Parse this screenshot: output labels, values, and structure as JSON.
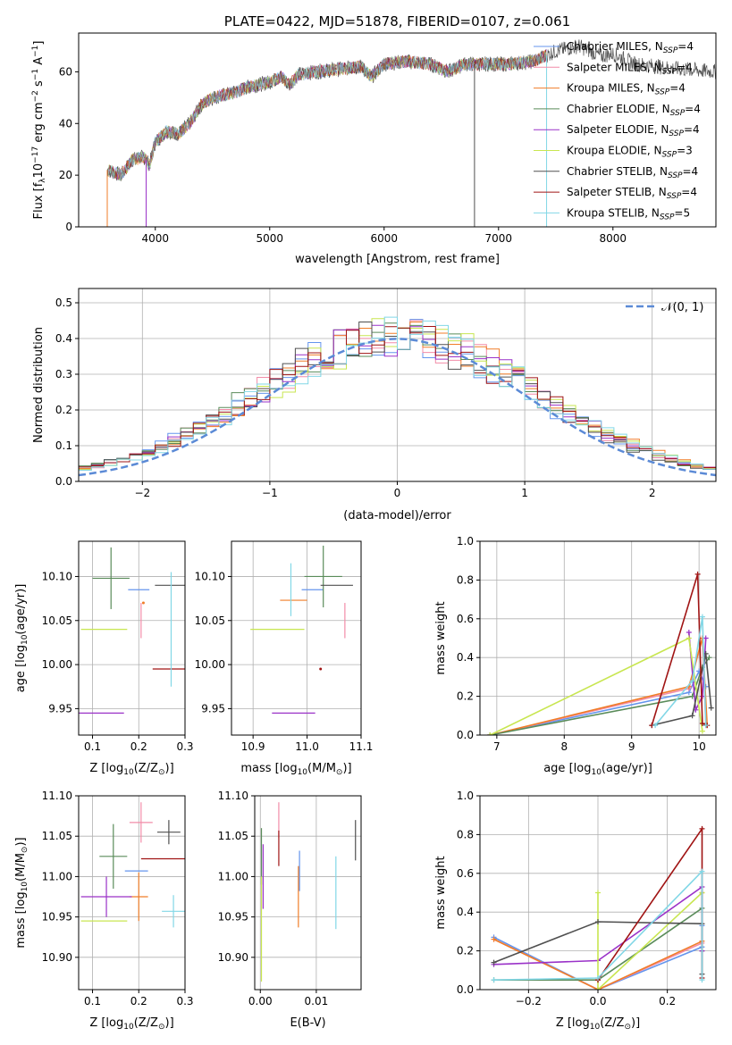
{
  "figure": {
    "title": "PLATE=0422, MJD=51878, FIBERID=0107, z=0.061"
  },
  "palette": [
    "#6495ed",
    "#f28ca8",
    "#f07d28",
    "#5a8c5a",
    "#9a32c8",
    "#c8e650",
    "#505050",
    "#a01414",
    "#82d7e6"
  ],
  "legend_entries": [
    {
      "name": "Chabrier MILES, N",
      "sub": "SSP",
      "suffix": "=4"
    },
    {
      "name": "Salpeter MILES, N",
      "sub": "SSP",
      "suffix": "=4"
    },
    {
      "name": "Kroupa MILES, N",
      "sub": "SSP",
      "suffix": "=4"
    },
    {
      "name": "Chabrier ELODIE, N",
      "sub": "SSP",
      "suffix": "=4"
    },
    {
      "name": "Salpeter ELODIE, N",
      "sub": "SSP",
      "suffix": "=4"
    },
    {
      "name": "Kroupa ELODIE, N",
      "sub": "SSP",
      "suffix": "=3"
    },
    {
      "name": "Chabrier STELIB, N",
      "sub": "SSP",
      "suffix": "=4"
    },
    {
      "name": "Salpeter STELIB, N",
      "sub": "SSP",
      "suffix": "=4"
    },
    {
      "name": "Kroupa STELIB, N",
      "sub": "SSP",
      "suffix": "=5"
    }
  ],
  "chart_data": [
    {
      "id": "spectrum",
      "type": "line",
      "xlabel": "wavelength [Angstrom, rest frame]",
      "ylabel": {
        "pre": "Flux [f",
        "sub": "λ",
        "mid": "10",
        "sup1": "−17",
        "post": " erg cm",
        "sup2": "−2",
        "post2": " s",
        "sup3": "−1",
        "post3": " A",
        "sup4": "−1",
        "end": "]"
      },
      "xlim": [
        3330,
        8900
      ],
      "ylim": [
        0,
        75
      ],
      "xticks": [
        4000,
        5000,
        6000,
        7000,
        8000
      ],
      "yticks": [
        0,
        20,
        40,
        60
      ],
      "data_x": [
        3580,
        3700,
        3800,
        3900,
        3950,
        4000,
        4100,
        4200,
        4300,
        4400,
        4500,
        4600,
        4700,
        4800,
        4900,
        5000,
        5100,
        5170,
        5250,
        5400,
        5600,
        5800,
        5890,
        6000,
        6200,
        6400,
        6563,
        6700,
        6900,
        7100,
        7300,
        7500,
        7600,
        7700,
        7800,
        7900,
        8000,
        8100,
        8200,
        8400,
        8600,
        8900
      ],
      "data_y": [
        22,
        20,
        26,
        27,
        24,
        33,
        37,
        36,
        40,
        47,
        50,
        51,
        52,
        54,
        55,
        56,
        58,
        55,
        59,
        60,
        61,
        62,
        58,
        63,
        64,
        63,
        60,
        63,
        63,
        63,
        64,
        68,
        69,
        70,
        68,
        66,
        67,
        65,
        63,
        62,
        61,
        60
      ],
      "model_cut_x": [
        3580,
        3920,
        6790,
        7420
      ]
    },
    {
      "id": "residuals",
      "type": "histogram",
      "xlabel": "(data-model)/error",
      "ylabel": "Normed distribution",
      "xlim": [
        -2.5,
        2.5
      ],
      "ylim": [
        0,
        0.54
      ],
      "xticks": [
        -2,
        -1,
        0,
        1,
        2
      ],
      "yticks": [
        0.0,
        0.1,
        0.2,
        0.3,
        0.4,
        0.5
      ],
      "bin_width": 0.1,
      "reference_legend": "(0, 1)",
      "reference_symbol": "𝒩",
      "reference": {
        "name": "normal",
        "mean": 0,
        "sigma": 1
      }
    },
    {
      "id": "age_vs_z",
      "type": "errorbar",
      "xlabel": {
        "pre": "Z [log",
        "sub": "10",
        "post": "(Z/Z",
        "sub2": "⊙",
        "end": ")]"
      },
      "ylabel": {
        "pre": "age  [log",
        "sub": "10",
        "post": "(age/yr)]"
      },
      "xlim": [
        0.07,
        0.3
      ],
      "ylim": [
        9.92,
        10.14
      ],
      "xticks": [
        0.1,
        0.2,
        0.3
      ],
      "yticks": [
        9.95,
        10.0,
        10.05,
        10.1
      ],
      "points": [
        {
          "x": 0.2,
          "xerr": 0.023,
          "y": 10.085,
          "yerr": 0.0
        },
        {
          "x": 0.205,
          "xerr": 0.0,
          "y": 10.05,
          "yerr": 0.02
        },
        {
          "x": 0.21,
          "xerr": 0.0,
          "y": 10.07,
          "yerr": 0.0
        },
        {
          "x": 0.14,
          "xerr": 0.04,
          "y": 10.098,
          "yerr": 0.035
        },
        {
          "x": 0.115,
          "xerr": 0.053,
          "y": 9.945,
          "yerr": 0.0
        },
        {
          "x": 0.125,
          "xerr": 0.05,
          "y": 10.04,
          "yerr": 0.0
        },
        {
          "x": 0.27,
          "xerr": 0.035,
          "y": 10.09,
          "yerr": 0.0
        },
        {
          "x": 0.27,
          "xerr": 0.04,
          "y": 9.995,
          "yerr": 0.0
        },
        {
          "x": 0.27,
          "xerr": 0.0,
          "y": 10.04,
          "yerr": 0.065
        }
      ]
    },
    {
      "id": "age_vs_mass",
      "type": "errorbar",
      "xlabel": {
        "pre": "mass [log",
        "sub": "10",
        "post": "(M/M",
        "sub2": "⊙",
        "end": ")]"
      },
      "xlim": [
        10.86,
        11.1
      ],
      "ylim": [
        9.92,
        10.14
      ],
      "xticks": [
        10.9,
        11.0,
        11.1
      ],
      "yticks": [
        9.95,
        10.0,
        10.05,
        10.1
      ],
      "points": [
        {
          "x": 11.01,
          "xerr": 0.02,
          "y": 10.085,
          "yerr": 0.0
        },
        {
          "x": 11.07,
          "xerr": 0.0,
          "y": 10.05,
          "yerr": 0.02
        },
        {
          "x": 10.975,
          "xerr": 0.025,
          "y": 10.073,
          "yerr": 0.0
        },
        {
          "x": 11.03,
          "xerr": 0.035,
          "y": 10.1,
          "yerr": 0.035
        },
        {
          "x": 10.975,
          "xerr": 0.04,
          "y": 9.945,
          "yerr": 0.0
        },
        {
          "x": 10.945,
          "xerr": 0.05,
          "y": 10.04,
          "yerr": 0.0
        },
        {
          "x": 11.055,
          "xerr": 0.03,
          "y": 10.09,
          "yerr": 0.0
        },
        {
          "x": 11.025,
          "xerr": 0.0,
          "y": 9.995,
          "yerr": 0.0
        },
        {
          "x": 10.97,
          "xerr": 0.0,
          "y": 10.085,
          "yerr": 0.03
        }
      ]
    },
    {
      "id": "massweight_vs_age",
      "type": "line",
      "xlabel": {
        "pre": "age  [log",
        "sub": "10",
        "post": "(age/yr)]"
      },
      "ylabel": "mass weight",
      "xlim": [
        6.75,
        10.25
      ],
      "ylim": [
        0,
        1.0
      ],
      "xticks": [
        7,
        8,
        9,
        10
      ],
      "yticks": [
        0.0,
        0.2,
        0.4,
        0.6,
        0.8,
        1.0
      ],
      "series": [
        {
          "x": [
            6.9,
            9.85,
            10.0,
            10.1
          ],
          "y": [
            0.0,
            0.22,
            0.33,
            0.25
          ]
        },
        {
          "x": [
            6.9,
            9.85,
            10.05,
            10.1
          ],
          "y": [
            0.0,
            0.24,
            0.5,
            0.05
          ]
        },
        {
          "x": [
            6.9,
            9.85,
            10.05,
            10.12
          ],
          "y": [
            0.0,
            0.25,
            0.5,
            0.05
          ]
        },
        {
          "x": [
            6.9,
            9.9,
            10.05,
            10.15
          ],
          "y": [
            0.0,
            0.2,
            0.35,
            0.4
          ]
        },
        {
          "x": [
            9.85,
            9.95,
            10.05,
            10.1
          ],
          "y": [
            0.53,
            0.13,
            0.2,
            0.5
          ]
        },
        {
          "x": [
            6.9,
            9.85,
            10.05
          ],
          "y": [
            0.0,
            0.5,
            0.02
          ]
        },
        {
          "x": [
            9.3,
            9.9,
            10.1,
            10.18
          ],
          "y": [
            0.05,
            0.1,
            0.42,
            0.14
          ]
        },
        {
          "x": [
            9.3,
            9.98,
            10.05,
            10.12
          ],
          "y": [
            0.05,
            0.83,
            0.06,
            0.05
          ]
        },
        {
          "x": [
            9.35,
            9.9,
            10.05,
            10.1
          ],
          "y": [
            0.05,
            0.28,
            0.61,
            0.05
          ]
        }
      ]
    },
    {
      "id": "mass_vs_z",
      "type": "errorbar",
      "xlabel": {
        "pre": "Z [log",
        "sub": "10",
        "post": "(Z/Z",
        "sub2": "⊙",
        "end": ")]"
      },
      "ylabel": {
        "pre": "mass [log",
        "sub": "10",
        "post": "(M/M",
        "sub2": "⊙",
        "end": ")]"
      },
      "xlim": [
        0.07,
        0.3
      ],
      "ylim": [
        10.86,
        11.1
      ],
      "xticks": [
        0.1,
        0.2,
        0.3
      ],
      "yticks": [
        10.9,
        10.95,
        11.0,
        11.05,
        11.1
      ],
      "points": [
        {
          "x": 0.195,
          "xerr": 0.025,
          "y": 11.007,
          "yerr": 0.0
        },
        {
          "x": 0.205,
          "xerr": 0.025,
          "y": 11.067,
          "yerr": 0.025
        },
        {
          "x": 0.2,
          "xerr": 0.02,
          "y": 10.975,
          "yerr": 0.03
        },
        {
          "x": 0.145,
          "xerr": 0.03,
          "y": 11.025,
          "yerr": 0.04
        },
        {
          "x": 0.13,
          "xerr": 0.055,
          "y": 10.975,
          "yerr": 0.025
        },
        {
          "x": 0.125,
          "xerr": 0.05,
          "y": 10.945,
          "yerr": 0.0
        },
        {
          "x": 0.265,
          "xerr": 0.025,
          "y": 11.055,
          "yerr": 0.015
        },
        {
          "x": 0.255,
          "xerr": 0.05,
          "y": 11.022,
          "yerr": 0.0
        },
        {
          "x": 0.275,
          "xerr": 0.025,
          "y": 10.957,
          "yerr": 0.02
        }
      ]
    },
    {
      "id": "mass_vs_ebv",
      "type": "errorbar",
      "xlabel": "E(B-V)",
      "xlim": [
        -0.001,
        0.018
      ],
      "ylim": [
        10.86,
        11.1
      ],
      "xticks": [
        0.0,
        0.01
      ],
      "yticks": [
        10.9,
        10.95,
        11.0,
        11.05,
        11.1
      ],
      "points": [
        {
          "x": 0.007,
          "xerr": 0.0,
          "y": 11.007,
          "yerr": 0.025
        },
        {
          "x": 0.0033,
          "xerr": 0.0,
          "y": 11.07,
          "yerr": 0.022
        },
        {
          "x": 0.0068,
          "xerr": 0.0,
          "y": 10.975,
          "yerr": 0.038
        },
        {
          "x": 0.0002,
          "xerr": 0.0,
          "y": 11.025,
          "yerr": 0.035
        },
        {
          "x": 0.0005,
          "xerr": 0.0,
          "y": 11.0,
          "yerr": 0.04
        },
        {
          "x": 0.0002,
          "xerr": 0.0,
          "y": 10.935,
          "yerr": 0.065
        },
        {
          "x": 0.017,
          "xerr": 0.0,
          "y": 11.045,
          "yerr": 0.025
        },
        {
          "x": 0.0033,
          "xerr": 0.0,
          "y": 11.035,
          "yerr": 0.022
        },
        {
          "x": 0.0135,
          "xerr": 0.0,
          "y": 10.98,
          "yerr": 0.045
        }
      ]
    },
    {
      "id": "massweight_vs_z",
      "type": "line",
      "xlabel": {
        "pre": "Z [log",
        "sub": "10",
        "post": "(Z/Z",
        "sub2": "⊙",
        "end": ")]"
      },
      "ylabel": "mass weight",
      "xlim": [
        -0.34,
        0.34
      ],
      "ylim": [
        0,
        1.0
      ],
      "xticks": [
        -0.2,
        0.0,
        0.2
      ],
      "yticks": [
        0.0,
        0.2,
        0.4,
        0.6,
        0.8,
        1.0
      ],
      "series": [
        {
          "x": [
            -0.3,
            0.0,
            0.3,
            0.3
          ],
          "y": [
            0.27,
            0.0,
            0.22,
            0.33
          ]
        },
        {
          "x": [
            -0.3,
            0.0,
            0.3,
            0.3
          ],
          "y": [
            0.26,
            0.0,
            0.24,
            0.5
          ]
        },
        {
          "x": [
            -0.3,
            0.0,
            0.3,
            0.3
          ],
          "y": [
            0.26,
            0.0,
            0.25,
            0.5
          ]
        },
        {
          "x": [
            -0.3,
            0.0,
            0.3,
            0.3
          ],
          "y": [
            0.05,
            0.05,
            0.42,
            0.2
          ]
        },
        {
          "x": [
            -0.3,
            0.0,
            0.3,
            0.3
          ],
          "y": [
            0.13,
            0.15,
            0.53,
            0.2
          ]
        },
        {
          "x": [
            0.0,
            0.0,
            0.3
          ],
          "y": [
            0.5,
            0.0,
            0.5
          ]
        },
        {
          "x": [
            -0.3,
            0.0,
            0.3,
            0.3
          ],
          "y": [
            0.14,
            0.35,
            0.34,
            0.08
          ]
        },
        {
          "x": [
            0.0,
            0.0,
            0.3,
            0.3
          ],
          "y": [
            0.05,
            0.05,
            0.83,
            0.06
          ]
        },
        {
          "x": [
            -0.3,
            0.0,
            0.3,
            0.3
          ],
          "y": [
            0.05,
            0.06,
            0.61,
            0.05
          ]
        }
      ]
    }
  ]
}
